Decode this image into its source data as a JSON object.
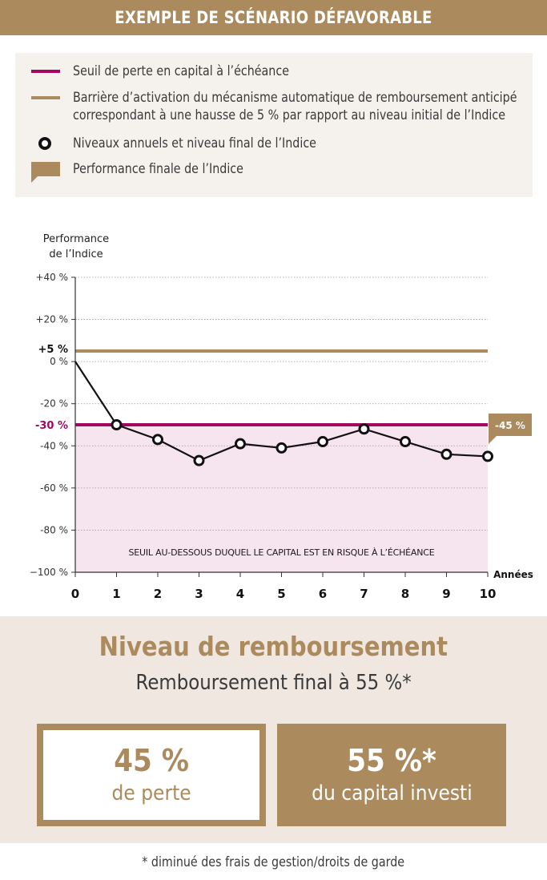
{
  "header": {
    "title": "EXEMPLE DE SCÉNARIO DÉFAVORABLE"
  },
  "legend": {
    "items": [
      {
        "symbol": "red-line",
        "text": "Seuil de perte en capital à l’échéance"
      },
      {
        "symbol": "gold-line",
        "text": "Barrière d’activation du mécanisme automatique de remboursement anticipé",
        "text2": "correspondant à une hausse de 5 % par rapport au niveau initial de l’Indice"
      },
      {
        "symbol": "black-circle",
        "text": "Niveaux annuels et niveau final de l’Indice"
      },
      {
        "symbol": "gold-flag",
        "text": "Performance finale de l’Indice"
      }
    ]
  },
  "colors": {
    "gold": "#ab8a5d",
    "red": "#a3075e",
    "risk_zone": "#f6e4ee",
    "line": "#111111"
  },
  "chart_data": {
    "type": "line",
    "ylabel_line1": "Performance",
    "ylabel_line2": "de l’Indice",
    "xlabel": "Années",
    "x": [
      0,
      1,
      2,
      3,
      4,
      5,
      6,
      7,
      8,
      9,
      10
    ],
    "values": [
      0,
      -30,
      -37,
      -47,
      -39,
      -41,
      -38,
      -32,
      -38,
      -44,
      -45
    ],
    "ylim": [
      -100,
      40
    ],
    "y_ticks": [
      {
        "value": 40,
        "label": "+40 %"
      },
      {
        "value": 20,
        "label": "+20 %"
      },
      {
        "value": 0,
        "label": "0 %"
      },
      {
        "value": -20,
        "label": "-20 %"
      },
      {
        "value": -40,
        "label": "-40 %"
      },
      {
        "value": -60,
        "label": "-60 %"
      },
      {
        "value": -80,
        "label": "-80 %"
      },
      {
        "value": -100,
        "label": "−100 %"
      }
    ],
    "x_tick_labels": [
      "0",
      "1",
      "2",
      "3",
      "4",
      "5",
      "6",
      "7",
      "8",
      "9",
      "10"
    ],
    "barrier": {
      "value": 5,
      "label": "+5 %"
    },
    "loss_threshold": {
      "value": -30,
      "label": "-30 %"
    },
    "final_flag_label": "-45 %",
    "risk_zone_label": "SEUIL AU-DESSOUS DUQUEL LE CAPITAL EST EN RISQUE À L’ÉCHÉANCE",
    "grid": true
  },
  "refund": {
    "title": "Niveau de remboursement",
    "subtitle": "Remboursement final à 55 %*",
    "loss_value": "45 %",
    "loss_label": "de perte",
    "capital_value": "55 %*",
    "capital_label": "du capital investi"
  },
  "footnote": "* diminué des frais de gestion/droits de garde"
}
